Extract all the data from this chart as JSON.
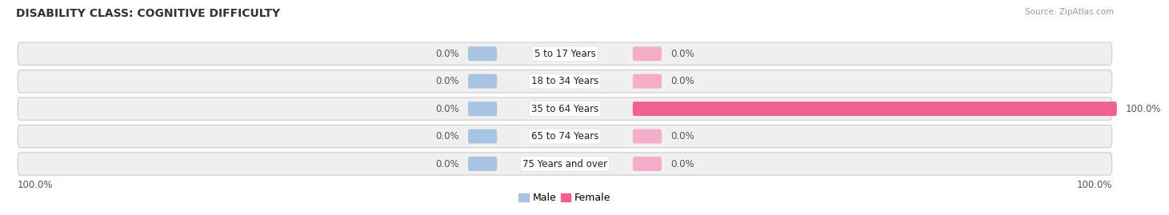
{
  "title": "DISABILITY CLASS: COGNITIVE DIFFICULTY",
  "source": "Source: ZipAtlas.com",
  "categories": [
    "5 to 17 Years",
    "18 to 34 Years",
    "35 to 64 Years",
    "65 to 74 Years",
    "75 Years and over"
  ],
  "male_values": [
    0.0,
    0.0,
    0.0,
    0.0,
    0.0
  ],
  "female_values": [
    0.0,
    0.0,
    100.0,
    0.0,
    0.0
  ],
  "male_left_labels": [
    "0.0%",
    "0.0%",
    "0.0%",
    "0.0%",
    "0.0%"
  ],
  "female_right_labels": [
    "0.0%",
    "0.0%",
    "100.0%",
    "0.0%",
    "0.0%"
  ],
  "left_axis_label": "100.0%",
  "right_axis_label": "100.0%",
  "male_color": "#a8c4e0",
  "female_color": "#f06090",
  "female_stub_color": "#f4aec8",
  "bar_bg_color": "#eeeeee",
  "row_bg_color": "#f0f0f0",
  "title_fontsize": 10,
  "label_fontsize": 8.5,
  "bar_max": 100.0
}
